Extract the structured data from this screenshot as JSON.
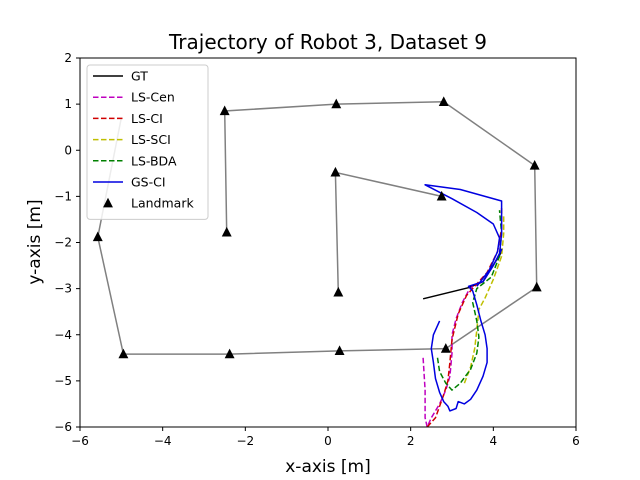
{
  "chart_data": {
    "type": "line",
    "title": "Trajectory of Robot 3, Dataset 9",
    "xlabel": "x-axis [m]",
    "ylabel": "y-axis [m]",
    "xlim": [
      -6,
      6
    ],
    "ylim": [
      -6,
      2
    ],
    "xticks": [
      -6,
      -4,
      -2,
      0,
      2,
      4,
      6
    ],
    "yticks": [
      -6,
      -5,
      -4,
      -3,
      -2,
      -1,
      0,
      1,
      2
    ],
    "xtick_labels": [
      "−6",
      "−4",
      "−2",
      "0",
      "2",
      "4",
      "6"
    ],
    "ytick_labels": [
      "−6",
      "−5",
      "−4",
      "−3",
      "−2",
      "−1",
      "0",
      "1",
      "2"
    ],
    "grid": false,
    "legend_position": "top-left",
    "boundary": {
      "color": "#808080",
      "paths": [
        [
          [
            -2.45,
            -1.78
          ],
          [
            -2.5,
            0.85
          ],
          [
            0.2,
            1.0
          ],
          [
            2.8,
            1.05
          ],
          [
            5.0,
            -0.33
          ],
          [
            5.05,
            -2.97
          ],
          [
            2.85,
            -4.3
          ],
          [
            0.28,
            -4.35
          ],
          [
            -2.38,
            -4.42
          ],
          [
            -4.95,
            -4.42
          ],
          [
            -5.57,
            -1.88
          ],
          [
            -5.0,
            0.7
          ]
        ],
        [
          [
            0.25,
            -3.08
          ],
          [
            0.18,
            -0.48
          ],
          [
            2.75,
            -1.0
          ]
        ]
      ]
    },
    "series": [
      {
        "name": "GT",
        "color": "#000000",
        "dash": "solid",
        "points": [
          [
            2.3,
            -3.22
          ],
          [
            3.4,
            -2.98
          ],
          [
            3.75,
            -2.85
          ],
          [
            4.2,
            -2.2
          ]
        ]
      },
      {
        "name": "LS-Cen",
        "color": "#bf00bf",
        "dash": "dashed",
        "points": [
          [
            2.3,
            -4.5
          ],
          [
            2.35,
            -5.2
          ],
          [
            2.35,
            -5.8
          ],
          [
            2.4,
            -6.0
          ],
          [
            2.5,
            -5.8
          ],
          [
            2.7,
            -5.5
          ],
          [
            2.85,
            -5.2
          ],
          [
            2.95,
            -4.9
          ],
          [
            3.0,
            -4.4
          ],
          [
            3.0,
            -4.0
          ],
          [
            3.1,
            -3.65
          ],
          [
            3.25,
            -3.3
          ],
          [
            3.4,
            -3.05
          ],
          [
            3.5,
            -2.95
          ]
        ]
      },
      {
        "name": "LS-CI",
        "color": "#d00000",
        "dash": "dashed",
        "points": [
          [
            2.4,
            -6.0
          ],
          [
            2.6,
            -5.8
          ],
          [
            2.8,
            -5.3
          ],
          [
            2.9,
            -5.0
          ],
          [
            2.95,
            -4.6
          ],
          [
            3.0,
            -4.1
          ],
          [
            3.15,
            -3.55
          ],
          [
            3.35,
            -3.15
          ],
          [
            3.55,
            -2.95
          ],
          [
            3.85,
            -2.65
          ],
          [
            4.1,
            -2.2
          ],
          [
            4.2,
            -1.7
          ],
          [
            4.2,
            -1.25
          ]
        ]
      },
      {
        "name": "LS-SCI",
        "color": "#bfbf00",
        "dash": "dashed",
        "points": [
          [
            3.3,
            -5.05
          ],
          [
            3.45,
            -4.7
          ],
          [
            3.55,
            -4.3
          ],
          [
            3.6,
            -3.9
          ],
          [
            3.65,
            -3.45
          ],
          [
            3.8,
            -3.2
          ],
          [
            4.0,
            -2.8
          ],
          [
            4.2,
            -2.3
          ],
          [
            4.25,
            -1.8
          ],
          [
            4.25,
            -1.4
          ]
        ]
      },
      {
        "name": "LS-BDA",
        "color": "#008000",
        "dash": "dashed",
        "points": [
          [
            2.65,
            -4.5
          ],
          [
            2.7,
            -4.8
          ],
          [
            2.85,
            -5.05
          ],
          [
            3.0,
            -5.2
          ],
          [
            3.2,
            -5.05
          ],
          [
            3.45,
            -4.75
          ],
          [
            3.6,
            -4.4
          ],
          [
            3.65,
            -4.05
          ],
          [
            3.6,
            -3.7
          ],
          [
            3.5,
            -3.3
          ],
          [
            3.6,
            -3.0
          ],
          [
            3.95,
            -2.75
          ],
          [
            4.15,
            -2.3
          ],
          [
            4.2,
            -1.8
          ],
          [
            4.15,
            -1.3
          ]
        ]
      },
      {
        "name": "GS-CI",
        "color": "#0000e0",
        "dash": "solid",
        "points": [
          [
            2.7,
            -3.7
          ],
          [
            2.55,
            -4.0
          ],
          [
            2.5,
            -4.3
          ],
          [
            2.55,
            -4.6
          ],
          [
            2.6,
            -4.95
          ],
          [
            2.7,
            -5.25
          ],
          [
            2.8,
            -5.45
          ],
          [
            2.9,
            -5.55
          ],
          [
            2.95,
            -5.65
          ],
          [
            3.1,
            -5.6
          ],
          [
            3.15,
            -5.45
          ],
          [
            3.3,
            -5.5
          ],
          [
            3.45,
            -5.4
          ],
          [
            3.6,
            -5.2
          ],
          [
            3.75,
            -4.9
          ],
          [
            3.85,
            -4.6
          ],
          [
            3.85,
            -4.3
          ],
          [
            3.8,
            -4.0
          ],
          [
            3.7,
            -3.7
          ],
          [
            3.6,
            -3.35
          ],
          [
            3.5,
            -3.05
          ],
          [
            3.4,
            -2.95
          ],
          [
            3.75,
            -2.85
          ],
          [
            4.0,
            -2.5
          ],
          [
            4.2,
            -2.15
          ],
          [
            4.15,
            -2.25
          ],
          [
            4.2,
            -1.8
          ],
          [
            4.2,
            -1.5
          ],
          [
            4.2,
            -1.1
          ],
          [
            3.2,
            -0.85
          ],
          [
            2.35,
            -0.75
          ],
          [
            3.0,
            -1.05
          ],
          [
            3.6,
            -1.35
          ],
          [
            4.0,
            -1.6
          ],
          [
            4.15,
            -1.9
          ],
          [
            4.1,
            -2.2
          ],
          [
            3.9,
            -2.6
          ],
          [
            3.6,
            -2.95
          ]
        ]
      }
    ],
    "landmarks": {
      "name": "Landmark",
      "color": "#000000",
      "marker": "triangle",
      "points": [
        [
          -2.5,
          0.85
        ],
        [
          0.2,
          1.0
        ],
        [
          2.8,
          1.05
        ],
        [
          5.0,
          -0.33
        ],
        [
          -2.45,
          -1.78
        ],
        [
          0.18,
          -0.48
        ],
        [
          2.75,
          -1.0
        ],
        [
          0.25,
          -3.08
        ],
        [
          5.05,
          -2.97
        ],
        [
          -5.57,
          -1.88
        ],
        [
          -4.95,
          -4.42
        ],
        [
          -2.38,
          -4.42
        ],
        [
          0.28,
          -4.35
        ],
        [
          2.85,
          -4.3
        ]
      ]
    }
  }
}
